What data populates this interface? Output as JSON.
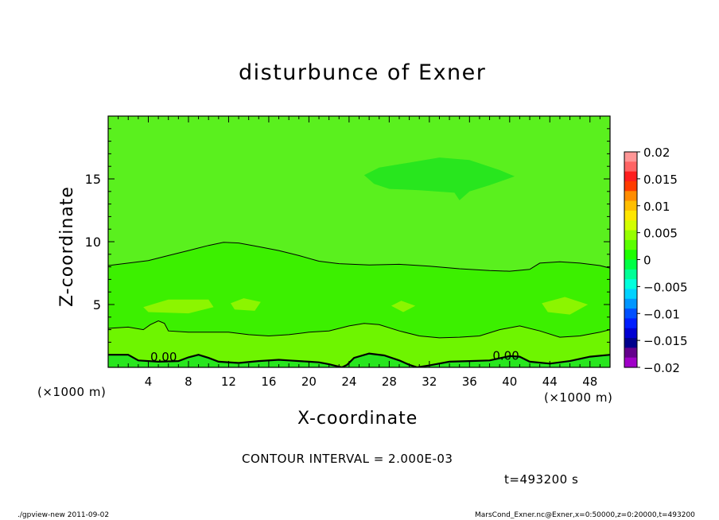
{
  "page": {
    "footer_left": "./gpview-new  2011-09-02",
    "footer_right": "MarsCond_Exner.nc@Exner,x=0:50000,z=0:20000,t=493200"
  },
  "chart_data": {
    "type": "heatmap",
    "title": "disturbunce of Exner",
    "xlabel": "X-coordinate",
    "ylabel": "Z-coordinate",
    "x_unit": "(×1000 m)",
    "y_unit": "(×1000 m)",
    "xlim": [
      0,
      50
    ],
    "ylim": [
      0,
      20
    ],
    "x_ticks": [
      4,
      8,
      12,
      16,
      20,
      24,
      28,
      32,
      36,
      40,
      44,
      48
    ],
    "y_ticks": [
      5,
      10,
      15
    ],
    "grid": false,
    "contour_interval_label": "CONTOUR INTERVAL = 2.000E-03",
    "time_label": "t=493200 s",
    "contour_labels": [
      "0.00",
      "0.00"
    ],
    "colorbar": {
      "ticks": [
        0.02,
        0.015,
        0.01,
        0.005,
        0,
        -0.005,
        -0.01,
        -0.015,
        -0.02
      ],
      "tick_labels": [
        "0.02",
        "0.015",
        "0.01",
        "0.005",
        "0",
        "−0.005",
        "−0.01",
        "−0.015",
        "−0.02"
      ],
      "range": [
        -0.02,
        0.02
      ],
      "colors_top_to_bottom": [
        "#ff9696",
        "#ff6464",
        "#ff1e1e",
        "#ff3c00",
        "#ff8c00",
        "#ffbe00",
        "#ffe600",
        "#d2ff00",
        "#96ff00",
        "#5aff00",
        "#1eff00",
        "#00ff46",
        "#00ff96",
        "#00ffdc",
        "#00d2ff",
        "#0096ff",
        "#0050ff",
        "#001eff",
        "#0000d2",
        "#00008c",
        "#64008c",
        "#a000c8"
      ]
    },
    "field_colors": {
      "base": "#5af01e",
      "band_0_to_0.002": "#3cf000",
      "band_0.002_to_0.004": "#6ef500",
      "band_0.004_to_0.006": "#8cf500",
      "band_neg_0.002_to_0": "#28e61e"
    },
    "contour_levels": [
      0.002,
      0.0,
      -0.002
    ]
  }
}
